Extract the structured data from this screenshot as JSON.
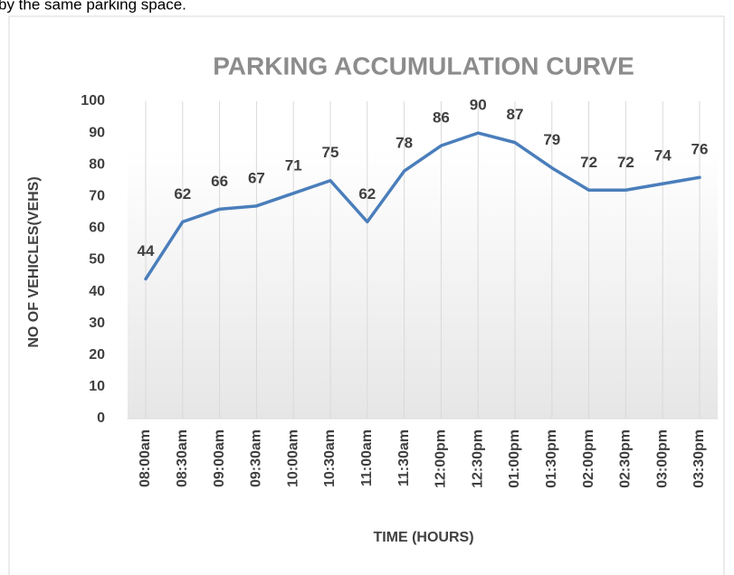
{
  "caption": "by the same parking space.",
  "chart_data": {
    "type": "line",
    "title": "PARKING ACCUMULATION CURVE",
    "x_label": "TIME (HOURS)",
    "y_label": "NO OF VEHICLES(VEHS)",
    "categories": [
      "08:00am",
      "08:30am",
      "09:00am",
      "09:30am",
      "10:00am",
      "10:30am",
      "11:00am",
      "11:30am",
      "12:00pm",
      "12:30pm",
      "01:00pm",
      "01:30pm",
      "02:00pm",
      "02:30pm",
      "03:00pm",
      "03:30pm"
    ],
    "values": [
      44,
      62,
      66,
      67,
      71,
      75,
      62,
      78,
      86,
      90,
      87,
      79,
      72,
      72,
      74,
      76
    ],
    "color": "#4a7ebb",
    "ylim": [
      0,
      100
    ],
    "yticks": [
      0,
      10,
      20,
      30,
      40,
      50,
      60,
      70,
      80,
      90,
      100
    ],
    "vertical_grid": true
  }
}
